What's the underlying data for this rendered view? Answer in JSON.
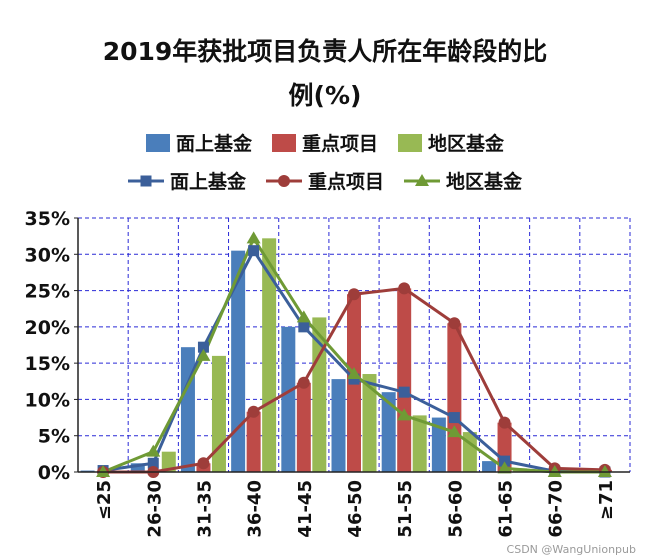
{
  "chart_data": {
    "type": "bar",
    "title": "2019年获批项目负责人所在年龄段的比例(%)",
    "title_lines": [
      "2019年获批项目负责人所在年龄段的比",
      "例(%)"
    ],
    "categories": [
      "≤25",
      "26-30",
      "31-35",
      "36-40",
      "41-45",
      "46-50",
      "51-55",
      "56-60",
      "61-65",
      "66-70",
      "≥71"
    ],
    "y_ticks": [
      "0%",
      "5%",
      "10%",
      "15%",
      "20%",
      "25%",
      "30%",
      "35%"
    ],
    "ylim": [
      0,
      35
    ],
    "grid": true,
    "legend_placement": "top",
    "series": [
      {
        "name": "面上基金",
        "kind": "bar",
        "color": "#4a7ebb",
        "values": [
          0.2,
          1.2,
          17.2,
          30.5,
          20.0,
          12.8,
          11.0,
          7.5,
          1.5,
          0.1,
          0.0
        ]
      },
      {
        "name": "重点项目",
        "kind": "bar",
        "color": "#be4b48",
        "values": [
          0.0,
          0.0,
          1.2,
          8.3,
          12.3,
          24.5,
          25.3,
          20.5,
          6.8,
          0.5,
          0.3
        ]
      },
      {
        "name": "地区基金",
        "kind": "bar",
        "color": "#98b954",
        "values": [
          0.0,
          2.8,
          16.0,
          32.2,
          21.3,
          13.5,
          7.8,
          5.5,
          0.5,
          0.0,
          0.0
        ]
      },
      {
        "name": "面上基金",
        "kind": "line",
        "marker": "square",
        "color": "#3b5f9a",
        "values": [
          0.2,
          1.2,
          17.2,
          30.5,
          20.0,
          12.8,
          11.0,
          7.5,
          1.5,
          0.1,
          0.0
        ]
      },
      {
        "name": "重点项目",
        "kind": "line",
        "marker": "circle",
        "color": "#9e3d3a",
        "values": [
          0.0,
          0.0,
          1.2,
          8.3,
          12.3,
          24.5,
          25.3,
          20.5,
          6.8,
          0.5,
          0.3
        ]
      },
      {
        "name": "地区基金",
        "kind": "line",
        "marker": "triangle",
        "color": "#6f9a35",
        "values": [
          0.0,
          2.8,
          16.0,
          32.2,
          21.3,
          13.5,
          7.8,
          5.5,
          0.5,
          0.0,
          0.0
        ]
      }
    ]
  },
  "watermark": "CSDN @WangUnionpub"
}
